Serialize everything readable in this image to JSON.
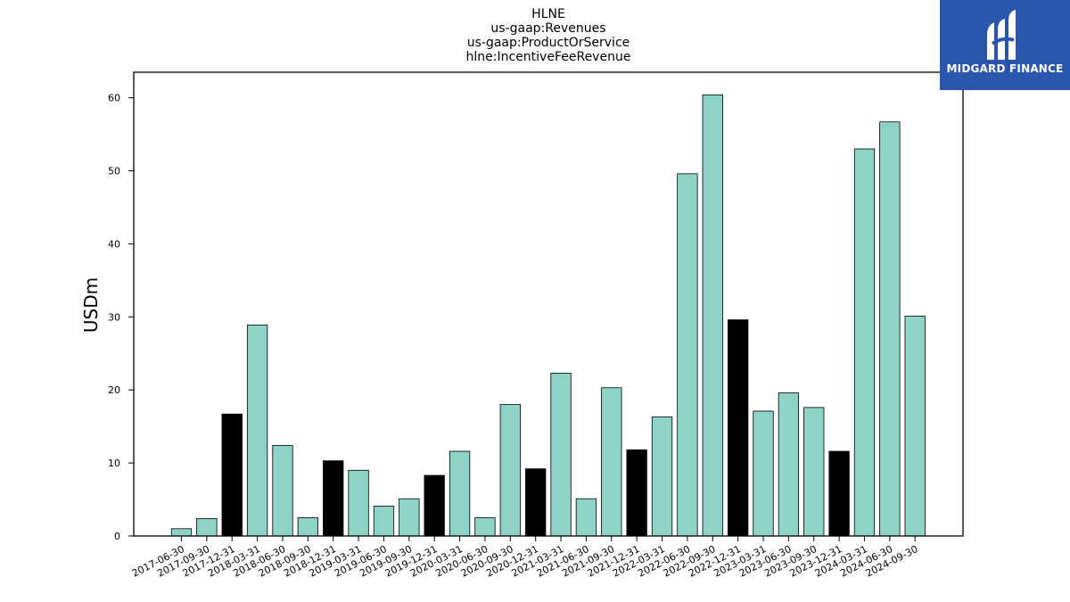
{
  "chart_data": {
    "type": "bar",
    "title_lines": [
      "HLNE",
      "us-gaap:Revenues",
      "us-gaap:ProductOrService",
      "hlne:IncentiveFeeRevenue"
    ],
    "xlabel": "",
    "ylabel": "USDm",
    "ylim": [
      0,
      63.5
    ],
    "yticks": [
      0,
      10,
      20,
      30,
      40,
      50,
      60
    ],
    "grid": false,
    "categories": [
      "2017-06-30",
      "2017-09-30",
      "2017-12-31",
      "2018-03-31",
      "2018-06-30",
      "2018-09-30",
      "2018-12-31",
      "2019-03-31",
      "2019-06-30",
      "2019-09-30",
      "2019-12-31",
      "2020-03-31",
      "2020-06-30",
      "2020-09-30",
      "2020-12-31",
      "2021-03-31",
      "2021-06-30",
      "2021-09-30",
      "2021-12-31",
      "2022-03-31",
      "2022-06-30",
      "2022-09-30",
      "2022-12-31",
      "2023-03-31",
      "2023-06-30",
      "2023-09-30",
      "2023-12-31",
      "2024-03-31",
      "2024-06-30",
      "2024-09-30"
    ],
    "values": [
      1.0,
      2.4,
      16.7,
      28.9,
      12.4,
      2.5,
      10.3,
      9.0,
      4.1,
      5.1,
      8.3,
      11.6,
      2.5,
      18.0,
      9.2,
      22.3,
      5.1,
      20.3,
      11.8,
      16.3,
      49.6,
      60.4,
      29.6,
      17.1,
      19.6,
      17.6,
      11.6,
      53.0,
      56.7,
      30.1
    ],
    "bar_kinds": [
      "q",
      "q",
      "y",
      "q",
      "q",
      "q",
      "y",
      "q",
      "q",
      "q",
      "y",
      "q",
      "q",
      "q",
      "y",
      "q",
      "q",
      "q",
      "y",
      "q",
      "q",
      "q",
      "y",
      "q",
      "q",
      "q",
      "y",
      "q",
      "q",
      "q"
    ],
    "colors": {
      "quarter": "#8dd3c7",
      "year_end": "#000000",
      "edge": "#000000"
    }
  },
  "logo": {
    "text": "MIDGARD FINANCE",
    "background": "#2a57ad"
  }
}
